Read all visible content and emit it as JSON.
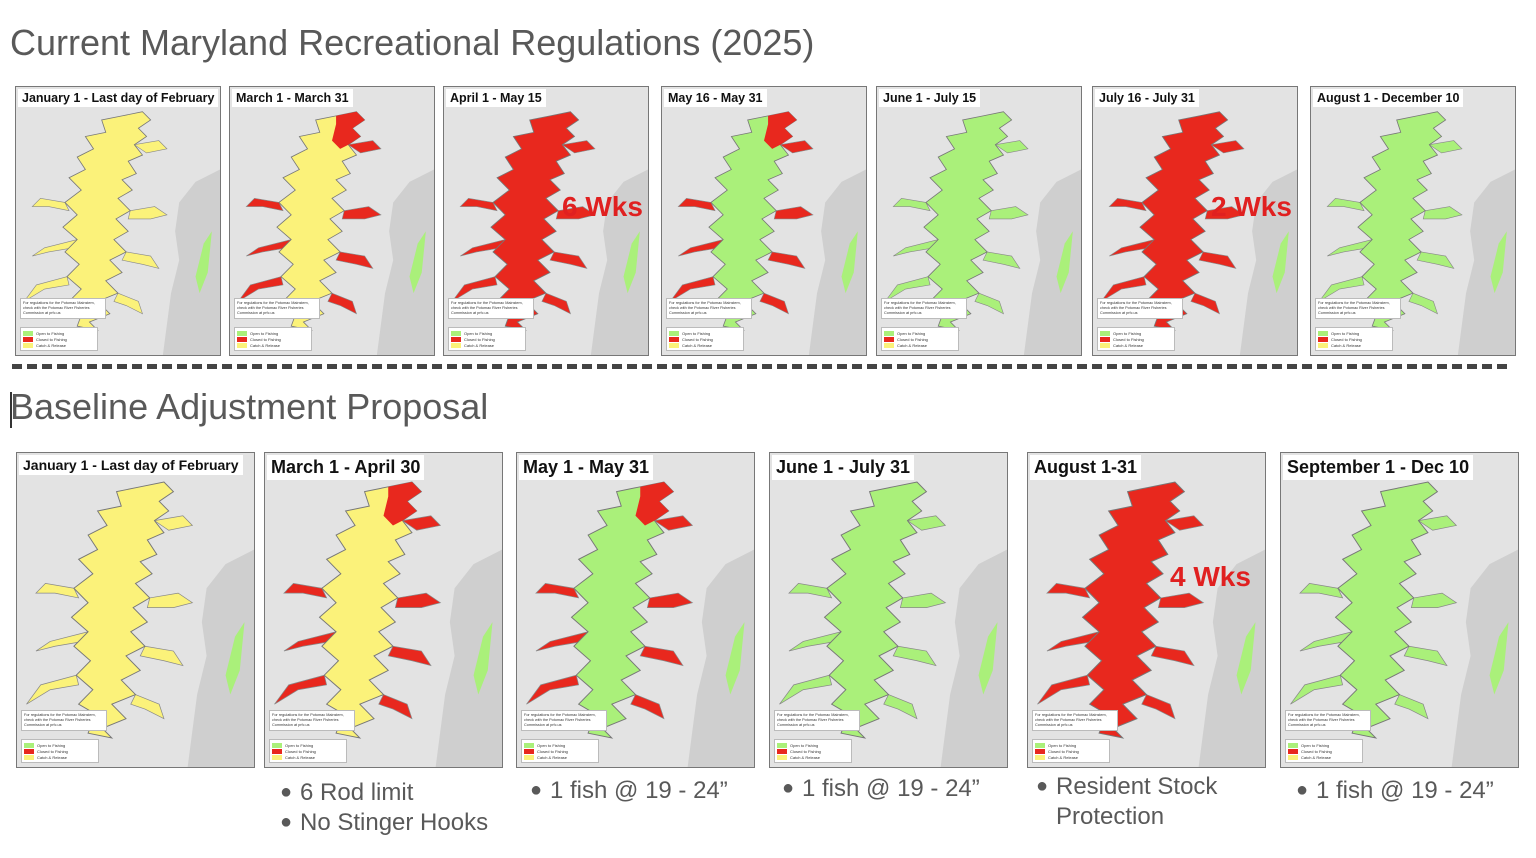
{
  "titles": {
    "current": "Current Maryland Recreational Regulations (2025)",
    "proposal": "Baseline Adjustment Proposal"
  },
  "colors": {
    "open": "#aaf07a",
    "closed": "#e8281e",
    "catch_release": "#fbf27a",
    "background_land": "#e3e3e3"
  },
  "legend": {
    "open": "Open to Fishing",
    "closed": "Closed to Fishing",
    "catch_release": "Catch & Release"
  },
  "note": "For regulations for the Potomac Mainstem, check with the Potomac River Fisheries Commission at prfc.us",
  "current": [
    {
      "label": "January 1 - Last day of February",
      "status": "catch_release",
      "wks": ""
    },
    {
      "label": "March 1 - March 31",
      "status": "mixed_yellow_red",
      "wks": ""
    },
    {
      "label": "April 1 - May 15",
      "status": "closed",
      "wks": "6 Wks"
    },
    {
      "label": "May 16 - May 31",
      "status": "mixed_green_red",
      "wks": ""
    },
    {
      "label": "June 1 - July 15",
      "status": "open",
      "wks": ""
    },
    {
      "label": "July 16 - July 31",
      "status": "closed",
      "wks": "2 Wks"
    },
    {
      "label": "August 1 - December 10",
      "status": "open",
      "wks": ""
    }
  ],
  "proposal": [
    {
      "label": "January 1 - Last day of February",
      "status": "catch_release",
      "wks": "",
      "bullets": []
    },
    {
      "label": "March 1 - April 30",
      "status": "mixed_yellow_red",
      "wks": "",
      "bullets": [
        "6 Rod limit",
        "No Stinger Hooks"
      ]
    },
    {
      "label": "May 1 - May 31",
      "status": "mixed_green_red",
      "wks": "",
      "bullets": [
        "1 fish @ 19 - 24”"
      ]
    },
    {
      "label": "June 1 - July 31",
      "status": "open",
      "wks": "",
      "bullets": [
        "1 fish @ 19 - 24”"
      ]
    },
    {
      "label": "August 1-31",
      "status": "closed",
      "wks": "4 Wks",
      "bullets": [
        "Resident Stock Protection"
      ]
    },
    {
      "label": "September 1 - Dec 10",
      "status": "open",
      "wks": "",
      "bullets": [
        "1 fish @ 19 - 24”"
      ]
    }
  ]
}
